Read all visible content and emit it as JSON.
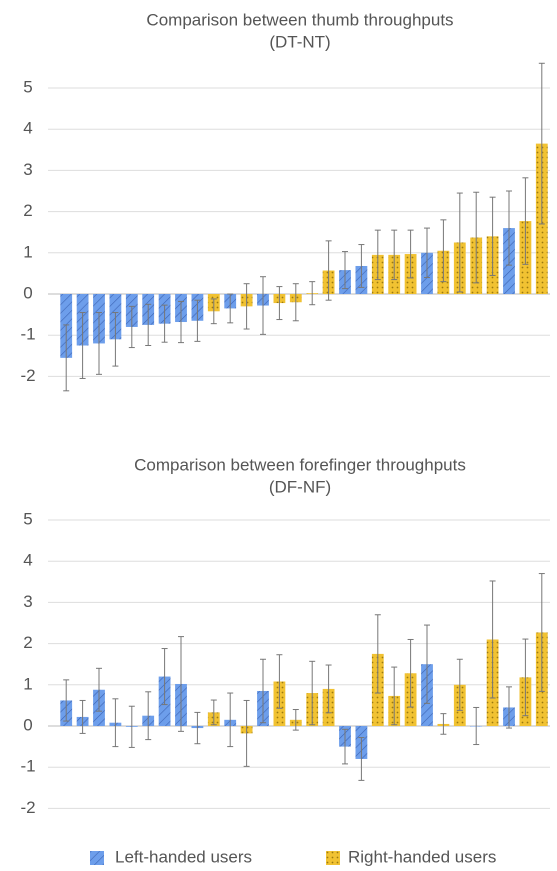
{
  "chart_data": [
    {
      "type": "bar",
      "title": "Comparison between thumb throughputs",
      "subtitle": "(DT-NT)",
      "ylim": [
        -2.5,
        5.5
      ],
      "yticks": [
        -2,
        -1,
        0,
        1,
        2,
        3,
        4,
        5
      ],
      "grid": true,
      "series": [
        {
          "color": "#6d9eeb",
          "pattern": "hatch",
          "values": [
            -1.55,
            -1.25,
            -1.2,
            -1.1,
            -0.8,
            -0.75,
            -0.72,
            -0.68,
            -0.65,
            null,
            -0.35,
            null,
            -0.28,
            null,
            null,
            null,
            null,
            0.58,
            0.68,
            null,
            null,
            null,
            1.0,
            null,
            null,
            null,
            null,
            1.6,
            null,
            null
          ],
          "errors": [
            0.8,
            0.8,
            0.75,
            0.65,
            0.5,
            0.5,
            0.45,
            0.5,
            0.5,
            null,
            0.35,
            null,
            0.7,
            null,
            null,
            null,
            null,
            0.45,
            0.52,
            null,
            null,
            null,
            0.6,
            null,
            null,
            null,
            null,
            0.9,
            null,
            null
          ]
        },
        {
          "color": "#f1c232",
          "pattern": "dots",
          "values": [
            null,
            null,
            null,
            null,
            null,
            null,
            null,
            null,
            null,
            -0.42,
            null,
            -0.3,
            null,
            -0.22,
            -0.2,
            0.02,
            0.57,
            null,
            null,
            0.95,
            0.95,
            0.97,
            null,
            1.05,
            1.25,
            1.37,
            1.4,
            null,
            1.77,
            3.65
          ],
          "errors": [
            null,
            null,
            null,
            null,
            null,
            null,
            null,
            null,
            null,
            0.3,
            null,
            0.55,
            null,
            0.4,
            0.45,
            0.28,
            0.72,
            null,
            null,
            0.6,
            0.6,
            0.58,
            null,
            0.75,
            1.2,
            1.1,
            0.95,
            null,
            1.05,
            1.95
          ]
        }
      ]
    },
    {
      "type": "bar",
      "title": "Comparison between forefinger throughputs",
      "subtitle": "(DF-NF)",
      "ylim": [
        -2.5,
        5.5
      ],
      "yticks": [
        -2,
        -1,
        0,
        1,
        2,
        3,
        4,
        5
      ],
      "grid": true,
      "series": [
        {
          "name": "Left-handed users",
          "color": "#6d9eeb",
          "pattern": "hatch",
          "values": [
            0.62,
            0.22,
            0.88,
            0.08,
            -0.02,
            0.25,
            1.2,
            1.02,
            -0.05,
            null,
            0.15,
            null,
            0.85,
            null,
            null,
            null,
            null,
            -0.5,
            -0.8,
            null,
            null,
            null,
            1.5,
            null,
            null,
            0.0,
            null,
            0.45,
            null,
            null
          ],
          "errors": [
            0.5,
            0.4,
            0.52,
            0.58,
            0.5,
            0.58,
            0.68,
            1.15,
            0.38,
            null,
            0.65,
            null,
            0.77,
            null,
            null,
            null,
            null,
            0.42,
            0.52,
            null,
            null,
            null,
            0.95,
            null,
            null,
            0.45,
            null,
            0.5,
            null,
            null
          ]
        },
        {
          "name": "Right-handed users",
          "color": "#f1c232",
          "pattern": "dots",
          "values": [
            null,
            null,
            null,
            null,
            null,
            null,
            null,
            null,
            null,
            0.33,
            null,
            -0.18,
            null,
            1.08,
            0.15,
            0.8,
            0.9,
            null,
            null,
            1.75,
            0.73,
            1.28,
            null,
            0.05,
            1.0,
            null,
            2.1,
            null,
            1.18,
            2.27
          ],
          "errors": [
            null,
            null,
            null,
            null,
            null,
            null,
            null,
            null,
            null,
            0.3,
            null,
            0.8,
            null,
            0.65,
            0.25,
            0.77,
            0.58,
            null,
            null,
            0.95,
            0.7,
            0.82,
            null,
            0.25,
            0.62,
            null,
            1.42,
            null,
            0.93,
            1.43
          ]
        }
      ]
    }
  ]
}
